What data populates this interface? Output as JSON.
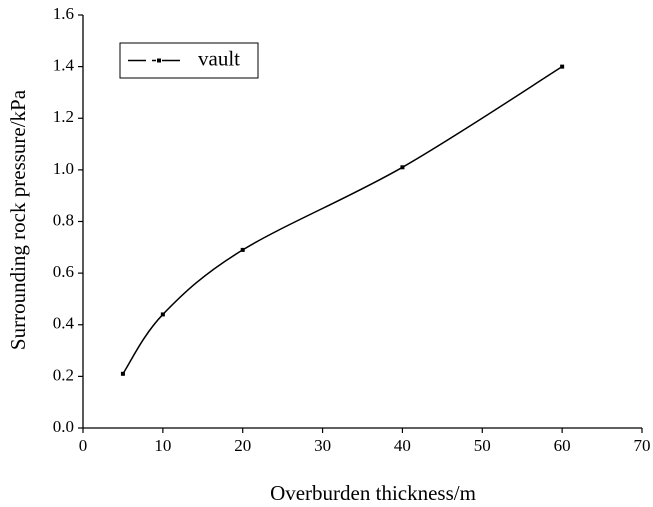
{
  "chart_data": {
    "type": "line",
    "x_label": "Overburden thickness/m",
    "y_label": "Surrounding rock pressure/kPa",
    "x": [
      5,
      10,
      20,
      40,
      60
    ],
    "series": [
      {
        "name": "vault",
        "color": "#000000",
        "values": [
          0.21,
          0.44,
          0.69,
          1.01,
          1.4
        ]
      }
    ],
    "xlim": [
      0,
      70
    ],
    "xticks": [
      0,
      10,
      20,
      30,
      40,
      50,
      60,
      70
    ],
    "ylim": [
      0,
      1.6
    ],
    "yticks": [
      {
        "value": 0,
        "label": "0.0"
      },
      {
        "value": 0.2,
        "label": "0.2"
      },
      {
        "value": 0.4,
        "label": "0.4"
      },
      {
        "value": 0.6,
        "label": "0.6"
      },
      {
        "value": 0.8,
        "label": "0.8"
      },
      {
        "value": 1.0,
        "label": "1.0"
      },
      {
        "value": 1.2,
        "label": "1.2"
      },
      {
        "value": 1.4,
        "label": "1.4"
      },
      {
        "value": 1.6,
        "label": "1.6"
      }
    ],
    "grid": false,
    "legend": "upper-left"
  }
}
